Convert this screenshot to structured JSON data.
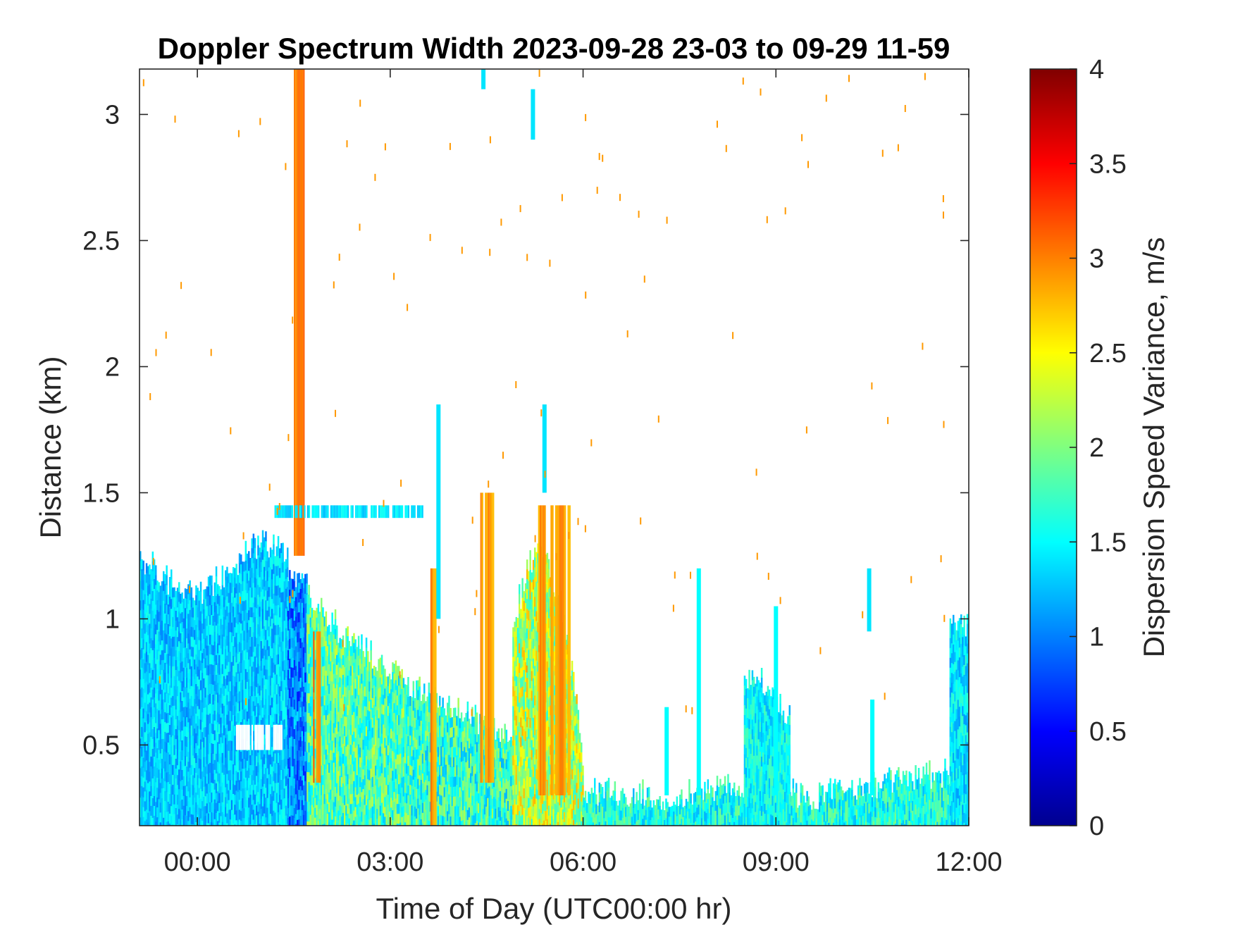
{
  "chart_data": {
    "type": "heatmap",
    "title": "Doppler Spectrum Width 2023-09-28 23-03 to 09-29 11-59",
    "xlabel": "Time of Day (UTC00:00 hr)",
    "ylabel": "Distance (km)",
    "x_ticks": [
      "00:00",
      "03:00",
      "06:00",
      "09:00",
      "12:00"
    ],
    "x_tick_hours": [
      0,
      3,
      6,
      9,
      12
    ],
    "xlim_hours": [
      -0.9,
      12
    ],
    "y_ticks": [
      "0.5",
      "1",
      "1.5",
      "2",
      "2.5",
      "3"
    ],
    "y_tick_values": [
      0.5,
      1,
      1.5,
      2,
      2.5,
      3
    ],
    "ylim": [
      0.18,
      3.18
    ],
    "colorbar": {
      "label": "Dispersion Speed Variance, m/s",
      "colormap": "jet",
      "ticks": [
        "0",
        "0.5",
        "1",
        "1.5",
        "2",
        "2.5",
        "3",
        "3.5",
        "4"
      ],
      "tick_values": [
        0,
        0.5,
        1,
        1.5,
        2,
        2.5,
        3,
        3.5,
        4
      ],
      "range": [
        0,
        4
      ]
    },
    "regions": [
      {
        "t0": -0.9,
        "t1": 1.4,
        "top": [
          1.25,
          1.15,
          1.1,
          1.2,
          1.3,
          1.28
        ],
        "value": 1.3,
        "spread": 0.3
      },
      {
        "t0": 1.4,
        "t1": 1.7,
        "top": [
          1.2,
          1.15
        ],
        "value": 1.0,
        "spread": 0.4
      },
      {
        "t0": 1.7,
        "t1": 3.3,
        "top": [
          1.1,
          0.95,
          0.85,
          0.72
        ],
        "value": 1.8,
        "spread": 0.5
      },
      {
        "t0": 3.3,
        "t1": 4.9,
        "top": [
          0.75,
          0.65,
          0.6,
          0.55
        ],
        "value": 1.7,
        "spread": 0.5
      },
      {
        "t0": 4.9,
        "t1": 6.0,
        "top": [
          1.0,
          1.3,
          1.1,
          0.45
        ],
        "value": 2.2,
        "spread": 0.6
      },
      {
        "t0": 6.0,
        "t1": 12.0,
        "top": [
          0.32,
          0.3,
          0.33,
          0.3,
          0.36,
          0.4
        ],
        "value": 1.6,
        "spread": 0.4
      },
      {
        "t0": 8.5,
        "t1": 9.2,
        "top": [
          0.78,
          0.75,
          0.6
        ],
        "value": 1.5,
        "spread": 0.3
      },
      {
        "t0": 11.7,
        "t1": 12.0,
        "top": [
          0.95,
          1.0
        ],
        "value": 1.4,
        "spread": 0.3
      }
    ],
    "streaks": [
      {
        "t0": 1.5,
        "t1": 1.65,
        "y0": 1.25,
        "y1": 3.18,
        "value": 3.0
      },
      {
        "t0": 1.8,
        "t1": 1.9,
        "y0": 0.35,
        "y1": 0.95,
        "value": 3.0
      },
      {
        "t0": 3.6,
        "t1": 3.7,
        "y0": 0.18,
        "y1": 1.2,
        "value": 2.9
      },
      {
        "t0": 4.4,
        "t1": 4.6,
        "y0": 0.35,
        "y1": 1.5,
        "value": 2.9
      },
      {
        "t0": 5.3,
        "t1": 5.8,
        "y0": 0.3,
        "y1": 1.45,
        "value": 2.9
      },
      {
        "t0": 0.6,
        "t1": 1.3,
        "y0": 0.48,
        "y1": 0.58,
        "value": -1
      },
      {
        "t0": 1.2,
        "t1": 3.5,
        "y0": 1.4,
        "y1": 1.45,
        "value": 1.4
      }
    ],
    "plumes": [
      {
        "t": 3.75,
        "y0": 1.0,
        "y1": 1.85,
        "value": 1.4
      },
      {
        "t": 5.4,
        "y0": 1.5,
        "y1": 1.85,
        "value": 1.4
      },
      {
        "t": 5.22,
        "y0": 2.9,
        "y1": 3.1,
        "value": 1.4
      },
      {
        "t": 4.45,
        "y0": 3.1,
        "y1": 3.18,
        "value": 1.4
      },
      {
        "t": 7.8,
        "y0": 0.3,
        "y1": 1.2,
        "value": 1.5
      },
      {
        "t": 7.3,
        "y0": 0.3,
        "y1": 0.65,
        "value": 1.5
      },
      {
        "t": 10.5,
        "y0": 0.3,
        "y1": 0.68,
        "value": 1.5
      },
      {
        "t": 10.45,
        "y0": 0.95,
        "y1": 1.2,
        "value": 1.4
      },
      {
        "t": 9.0,
        "y0": 0.3,
        "y1": 1.05,
        "value": 1.5
      }
    ]
  }
}
